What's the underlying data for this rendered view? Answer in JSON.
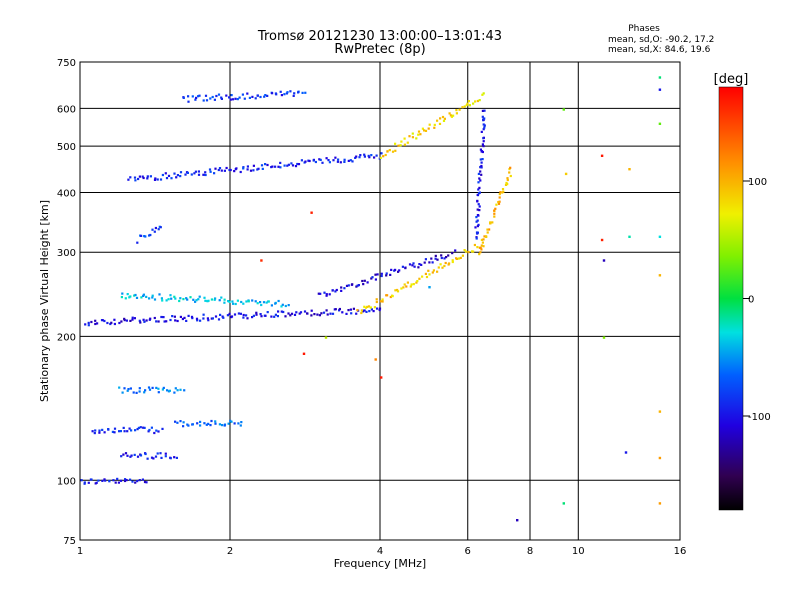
{
  "header": {
    "title_line1": "Tromsø 20121230 13:00:00–13:01:43",
    "title_line2": "RwPretec (8p)"
  },
  "stats": {
    "heading": "Phases",
    "line_o": "mean, sd,O: -90.2, 17.2",
    "line_x": "mean, sd,X:  84.6, 19.6"
  },
  "chart_data": {
    "type": "scatter",
    "xlabel": "Frequency [MHz]",
    "ylabel": "Stationary phase Virtual Height [km]",
    "x_scale": "log",
    "y_scale": "log",
    "xlim": [
      1,
      16
    ],
    "ylim": [
      75,
      750
    ],
    "x_ticks": [
      1,
      2,
      4,
      6,
      8,
      10,
      16
    ],
    "y_ticks": [
      75,
      100,
      200,
      300,
      400,
      500,
      600,
      750
    ],
    "grid": true,
    "colorbar": {
      "label": "[deg]",
      "range": [
        -180,
        180
      ],
      "ticks": [
        100,
        0,
        -100
      ]
    },
    "traces": [
      {
        "x0": 1.0,
        "x1": 1.35,
        "y0": 100,
        "y1": 100,
        "c": -100
      },
      {
        "x0": 1.05,
        "x1": 1.45,
        "y0": 128,
        "y1": 128,
        "c": -95
      },
      {
        "x0": 1.2,
        "x1": 1.55,
        "y0": 113,
        "y1": 113,
        "c": -100
      },
      {
        "x0": 1.55,
        "x1": 2.1,
        "y0": 132,
        "y1": 132,
        "c": -70
      },
      {
        "x0": 1.2,
        "x1": 1.6,
        "y0": 155,
        "y1": 155,
        "c": -60
      },
      {
        "x0": 1.02,
        "x1": 4.0,
        "y0": 215,
        "y1": 228,
        "c": -105
      },
      {
        "x0": 1.2,
        "x1": 2.6,
        "y0": 245,
        "y1": 235,
        "c": -40
      },
      {
        "x0": 3.0,
        "x1": 5.6,
        "y0": 245,
        "y1": 300,
        "c": -110
      },
      {
        "x0": 3.6,
        "x1": 6.4,
        "y0": 225,
        "y1": 315,
        "c": 90
      },
      {
        "x0": 6.3,
        "x1": 7.3,
        "y0": 300,
        "y1": 450,
        "c": 100
      },
      {
        "x0": 6.2,
        "x1": 6.45,
        "y0": 320,
        "y1": 600,
        "c": -100
      },
      {
        "x0": 1.25,
        "x1": 4.0,
        "y0": 428,
        "y1": 480,
        "c": -95
      },
      {
        "x0": 4.0,
        "x1": 6.4,
        "y0": 480,
        "y1": 640,
        "c": 85
      },
      {
        "x0": 1.6,
        "x1": 2.8,
        "y0": 630,
        "y1": 650,
        "c": -90
      },
      {
        "x0": 1.3,
        "x1": 1.45,
        "y0": 320,
        "y1": 345,
        "c": -85
      }
    ],
    "scattered_points": [
      {
        "x": 2.3,
        "y": 290,
        "c": 160
      },
      {
        "x": 2.8,
        "y": 185,
        "c": 170
      },
      {
        "x": 2.9,
        "y": 365,
        "c": 165
      },
      {
        "x": 3.1,
        "y": 200,
        "c": 60
      },
      {
        "x": 3.9,
        "y": 180,
        "c": 120
      },
      {
        "x": 4.0,
        "y": 165,
        "c": 170
      },
      {
        "x": 5.0,
        "y": 255,
        "c": -50
      },
      {
        "x": 7.5,
        "y": 83,
        "c": -120
      },
      {
        "x": 9.3,
        "y": 90,
        "c": -10
      },
      {
        "x": 9.4,
        "y": 440,
        "c": 90
      },
      {
        "x": 9.3,
        "y": 600,
        "c": 30
      },
      {
        "x": 11.1,
        "y": 320,
        "c": 165
      },
      {
        "x": 11.1,
        "y": 480,
        "c": 170
      },
      {
        "x": 11.2,
        "y": 290,
        "c": -120
      },
      {
        "x": 11.2,
        "y": 200,
        "c": 40
      },
      {
        "x": 12.4,
        "y": 115,
        "c": -100
      },
      {
        "x": 12.6,
        "y": 450,
        "c": 100
      },
      {
        "x": 12.6,
        "y": 325,
        "c": -20
      },
      {
        "x": 14.5,
        "y": 700,
        "c": -10
      },
      {
        "x": 14.5,
        "y": 560,
        "c": 30
      },
      {
        "x": 14.5,
        "y": 325,
        "c": -30
      },
      {
        "x": 14.5,
        "y": 270,
        "c": 100
      },
      {
        "x": 14.5,
        "y": 140,
        "c": 100
      },
      {
        "x": 14.5,
        "y": 112,
        "c": 110
      },
      {
        "x": 14.5,
        "y": 90,
        "c": 110
      },
      {
        "x": 14.5,
        "y": 660,
        "c": -100
      }
    ]
  }
}
